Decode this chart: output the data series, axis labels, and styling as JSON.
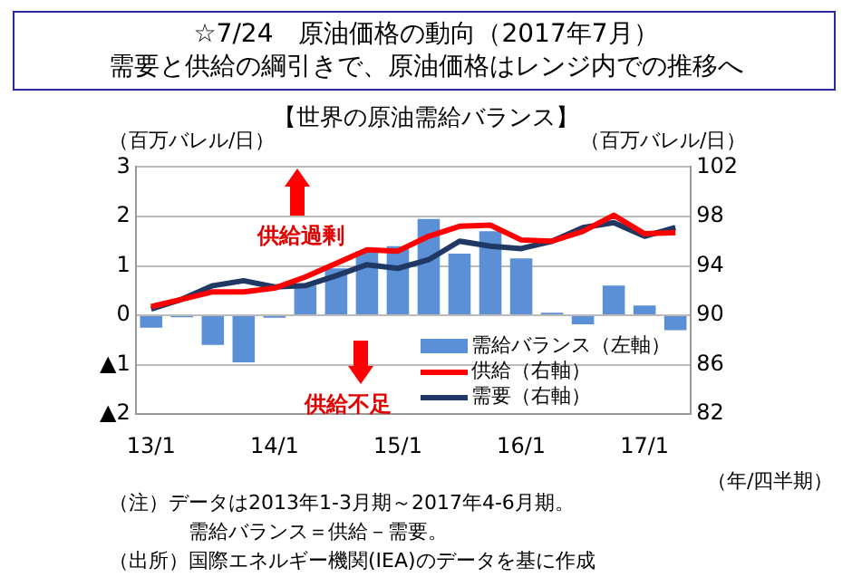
{
  "chart_data": {
    "type": "bar",
    "title": "☆7/24　原油価格の動向（2017年7月）",
    "subtitle": "需要と供給の綱引きで、原油価格はレンジ内での推移へ",
    "ylabel": "（百万バレル/日）",
    "y2label": "（百万バレル/日）",
    "xlabel": "（年/四半期）",
    "categories": [
      "13/1",
      null,
      null,
      null,
      "14/1",
      null,
      null,
      null,
      "15/1",
      null,
      null,
      null,
      "16/1",
      null,
      null,
      null,
      "17/1",
      null
    ],
    "series": [
      {
        "name": "需給バランス（左軸）",
        "color": "#5b8fd6",
        "values": [
          -0.25,
          -0.04,
          -0.6,
          -0.95,
          -0.05,
          0.6,
          0.95,
          1.3,
          1.4,
          1.95,
          1.25,
          1.7,
          1.15,
          0.05,
          -0.18,
          0.6,
          0.2,
          -0.3
        ]
      },
      {
        "name": "供給（右軸）",
        "type": "line",
        "axis": "y2",
        "color": "#ff0000",
        "values": [
          90.7,
          91.3,
          91.9,
          91.9,
          92.2,
          93.1,
          94.2,
          95.3,
          95.2,
          96.4,
          97.2,
          97.3,
          96.1,
          96,
          96.8,
          98.1,
          96.6,
          96.7
        ]
      },
      {
        "name": "需要（右軸）",
        "type": "line",
        "axis": "y2",
        "color": "#1f3864",
        "values": [
          90.5,
          91.3,
          92.4,
          92.8,
          92.3,
          92.4,
          93.2,
          94.1,
          93.8,
          94.5,
          96,
          95.6,
          95.4,
          96,
          97.1,
          97.5,
          96.4,
          97.1
        ]
      }
    ],
    "ylim": [
      -2,
      3
    ],
    "yticks": [
      {
        "value": -2,
        "label": "▲2"
      },
      {
        "value": -1,
        "label": "▲1"
      },
      0,
      1,
      2,
      3
    ],
    "y2lim": [
      82,
      102
    ],
    "y2ticks": [
      82,
      86,
      90,
      94,
      98,
      102
    ],
    "grid": "y",
    "legend": "bottom right",
    "annotations": [
      "【世界の原油需給バランス】",
      "供給過剰",
      "供給不足",
      "（注）データは2013年1-3月期～2017年4-6月期。",
      "需給バランス＝供給－需要。",
      "（出所）国際エネルギー機関(IEA)のデータを基に作成"
    ]
  }
}
